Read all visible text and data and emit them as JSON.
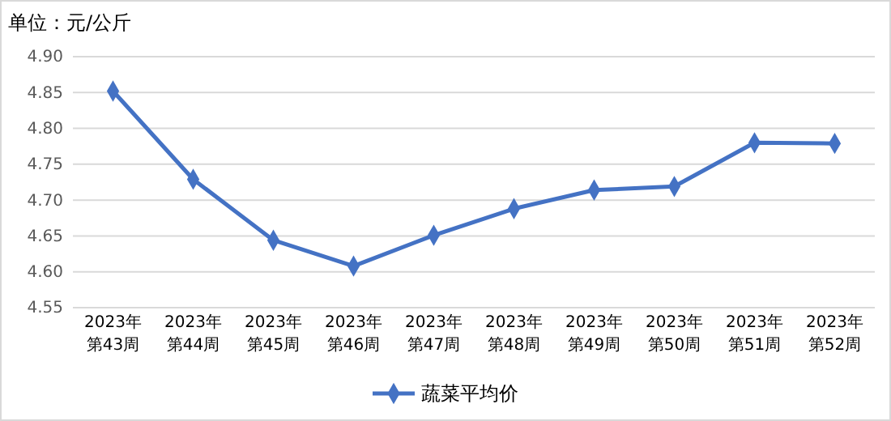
{
  "chart_data": {
    "type": "line",
    "title": "单位：元/公斤",
    "categories": [
      "2023年第43周",
      "2023年第44周",
      "2023年第45周",
      "2023年第46周",
      "2023年第47周",
      "2023年第48周",
      "2023年第49周",
      "2023年第50周",
      "2023年第51周",
      "2023年第52周"
    ],
    "series": [
      {
        "name": "蔬菜平均价",
        "color": "#4472c4",
        "values": [
          4.852,
          4.729,
          4.644,
          4.608,
          4.651,
          4.688,
          4.714,
          4.719,
          4.78,
          4.779
        ]
      }
    ],
    "ylim": [
      4.55,
      4.9
    ],
    "yticks": [
      {
        "value": 4.55,
        "label": "4.55"
      },
      {
        "value": 4.6,
        "label": "4.60"
      },
      {
        "value": 4.65,
        "label": "4.65"
      },
      {
        "value": 4.7,
        "label": "4.70"
      },
      {
        "value": 4.75,
        "label": "4.75"
      },
      {
        "value": 4.8,
        "label": "4.80"
      },
      {
        "value": 4.85,
        "label": "4.85"
      },
      {
        "value": 4.9,
        "label": "4.90"
      }
    ],
    "grid": "y",
    "legend": "bottom",
    "marker": "diamond",
    "line_style": "solid"
  }
}
